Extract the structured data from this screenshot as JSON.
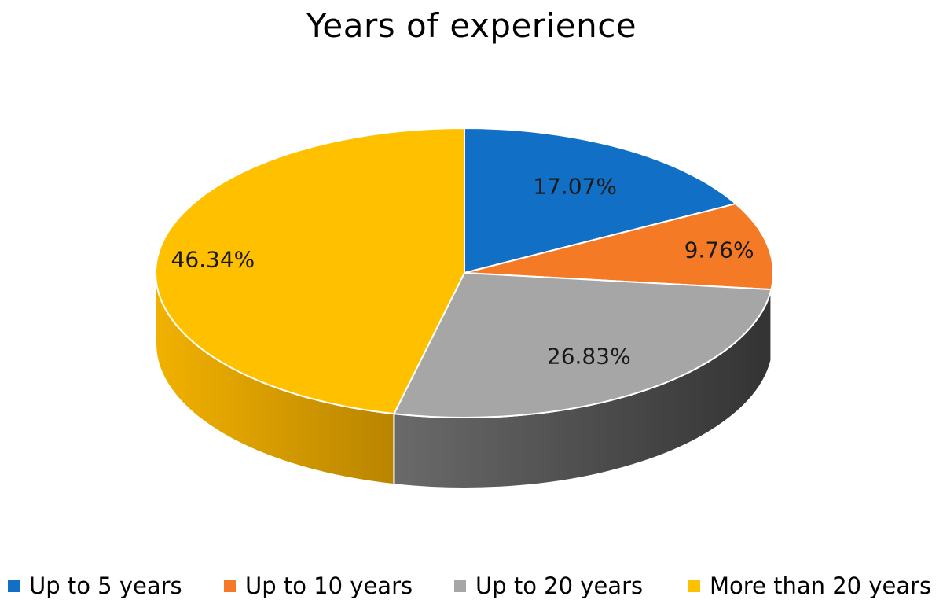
{
  "chart_data": {
    "type": "pie",
    "title": "Years of experience",
    "categories": [
      "Up to 5 years",
      "Up to 10 years",
      "Up to 20 years",
      "More than 20 years"
    ],
    "values": [
      17.07,
      9.76,
      26.83,
      46.34
    ],
    "data_labels": [
      "17.07%",
      "9.76%",
      "26.83%",
      "46.34%"
    ],
    "colors": [
      "#1170C6",
      "#F57A25",
      "#A6A6A6",
      "#FFC000"
    ],
    "side_colors": [
      "#0A4B86",
      "#A85210",
      "#434343",
      "#C69200"
    ],
    "style": "3d",
    "legend_position": "bottom"
  }
}
